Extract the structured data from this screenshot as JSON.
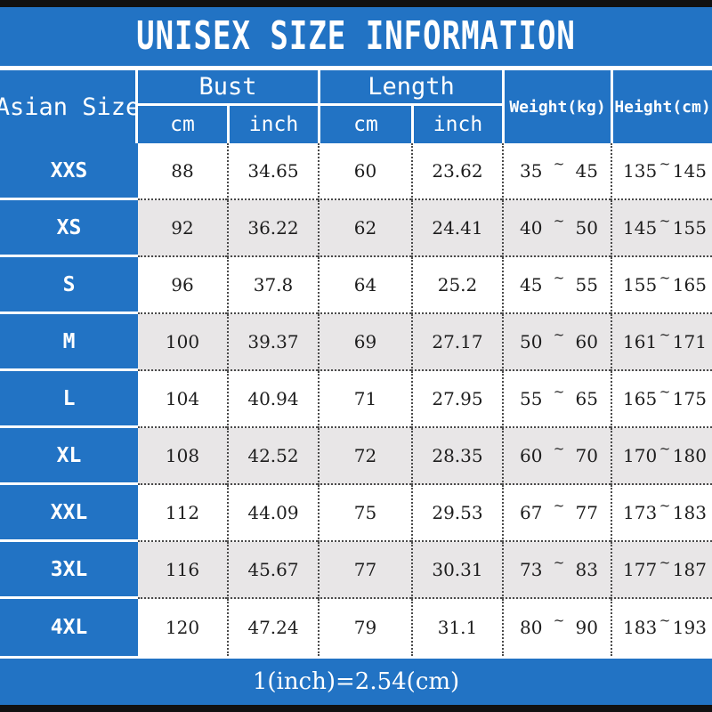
{
  "title": "UNISEX SIZE INFORMATION",
  "table": {
    "size_header": "Asian Size",
    "bust_header": "Bust",
    "length_header": "Length",
    "cm_label": "cm",
    "inch_label": "inch",
    "weight_header": "Weight(kg)",
    "height_header": "Height(cm)",
    "tilde": "~",
    "rows": [
      {
        "size": "XXS",
        "bust_cm": "88",
        "bust_inch": "34.65",
        "len_cm": "60",
        "len_inch": "23.62",
        "w_min": "35",
        "w_max": "45",
        "h_min": "135",
        "h_max": "145"
      },
      {
        "size": "XS",
        "bust_cm": "92",
        "bust_inch": "36.22",
        "len_cm": "62",
        "len_inch": "24.41",
        "w_min": "40",
        "w_max": "50",
        "h_min": "145",
        "h_max": "155"
      },
      {
        "size": "S",
        "bust_cm": "96",
        "bust_inch": "37.8",
        "len_cm": "64",
        "len_inch": "25.2",
        "w_min": "45",
        "w_max": "55",
        "h_min": "155",
        "h_max": "165"
      },
      {
        "size": "M",
        "bust_cm": "100",
        "bust_inch": "39.37",
        "len_cm": "69",
        "len_inch": "27.17",
        "w_min": "50",
        "w_max": "60",
        "h_min": "161",
        "h_max": "171"
      },
      {
        "size": "L",
        "bust_cm": "104",
        "bust_inch": "40.94",
        "len_cm": "71",
        "len_inch": "27.95",
        "w_min": "55",
        "w_max": "65",
        "h_min": "165",
        "h_max": "175"
      },
      {
        "size": "XL",
        "bust_cm": "108",
        "bust_inch": "42.52",
        "len_cm": "72",
        "len_inch": "28.35",
        "w_min": "60",
        "w_max": "70",
        "h_min": "170",
        "h_max": "180"
      },
      {
        "size": "XXL",
        "bust_cm": "112",
        "bust_inch": "44.09",
        "len_cm": "75",
        "len_inch": "29.53",
        "w_min": "67",
        "w_max": "77",
        "h_min": "173",
        "h_max": "183"
      },
      {
        "size": "3XL",
        "bust_cm": "116",
        "bust_inch": "45.67",
        "len_cm": "77",
        "len_inch": "30.31",
        "w_min": "73",
        "w_max": "83",
        "h_min": "177",
        "h_max": "187"
      },
      {
        "size": "4XL",
        "bust_cm": "120",
        "bust_inch": "47.24",
        "len_cm": "79",
        "len_inch": "31.1",
        "w_min": "80",
        "w_max": "90",
        "h_min": "183",
        "h_max": "193"
      }
    ]
  },
  "footer": {
    "note": "1(inch)=2.54(cm)"
  },
  "colors": {
    "blue": "#2273c4",
    "row_alt": "#e8e6e7",
    "frame": "#111111"
  }
}
